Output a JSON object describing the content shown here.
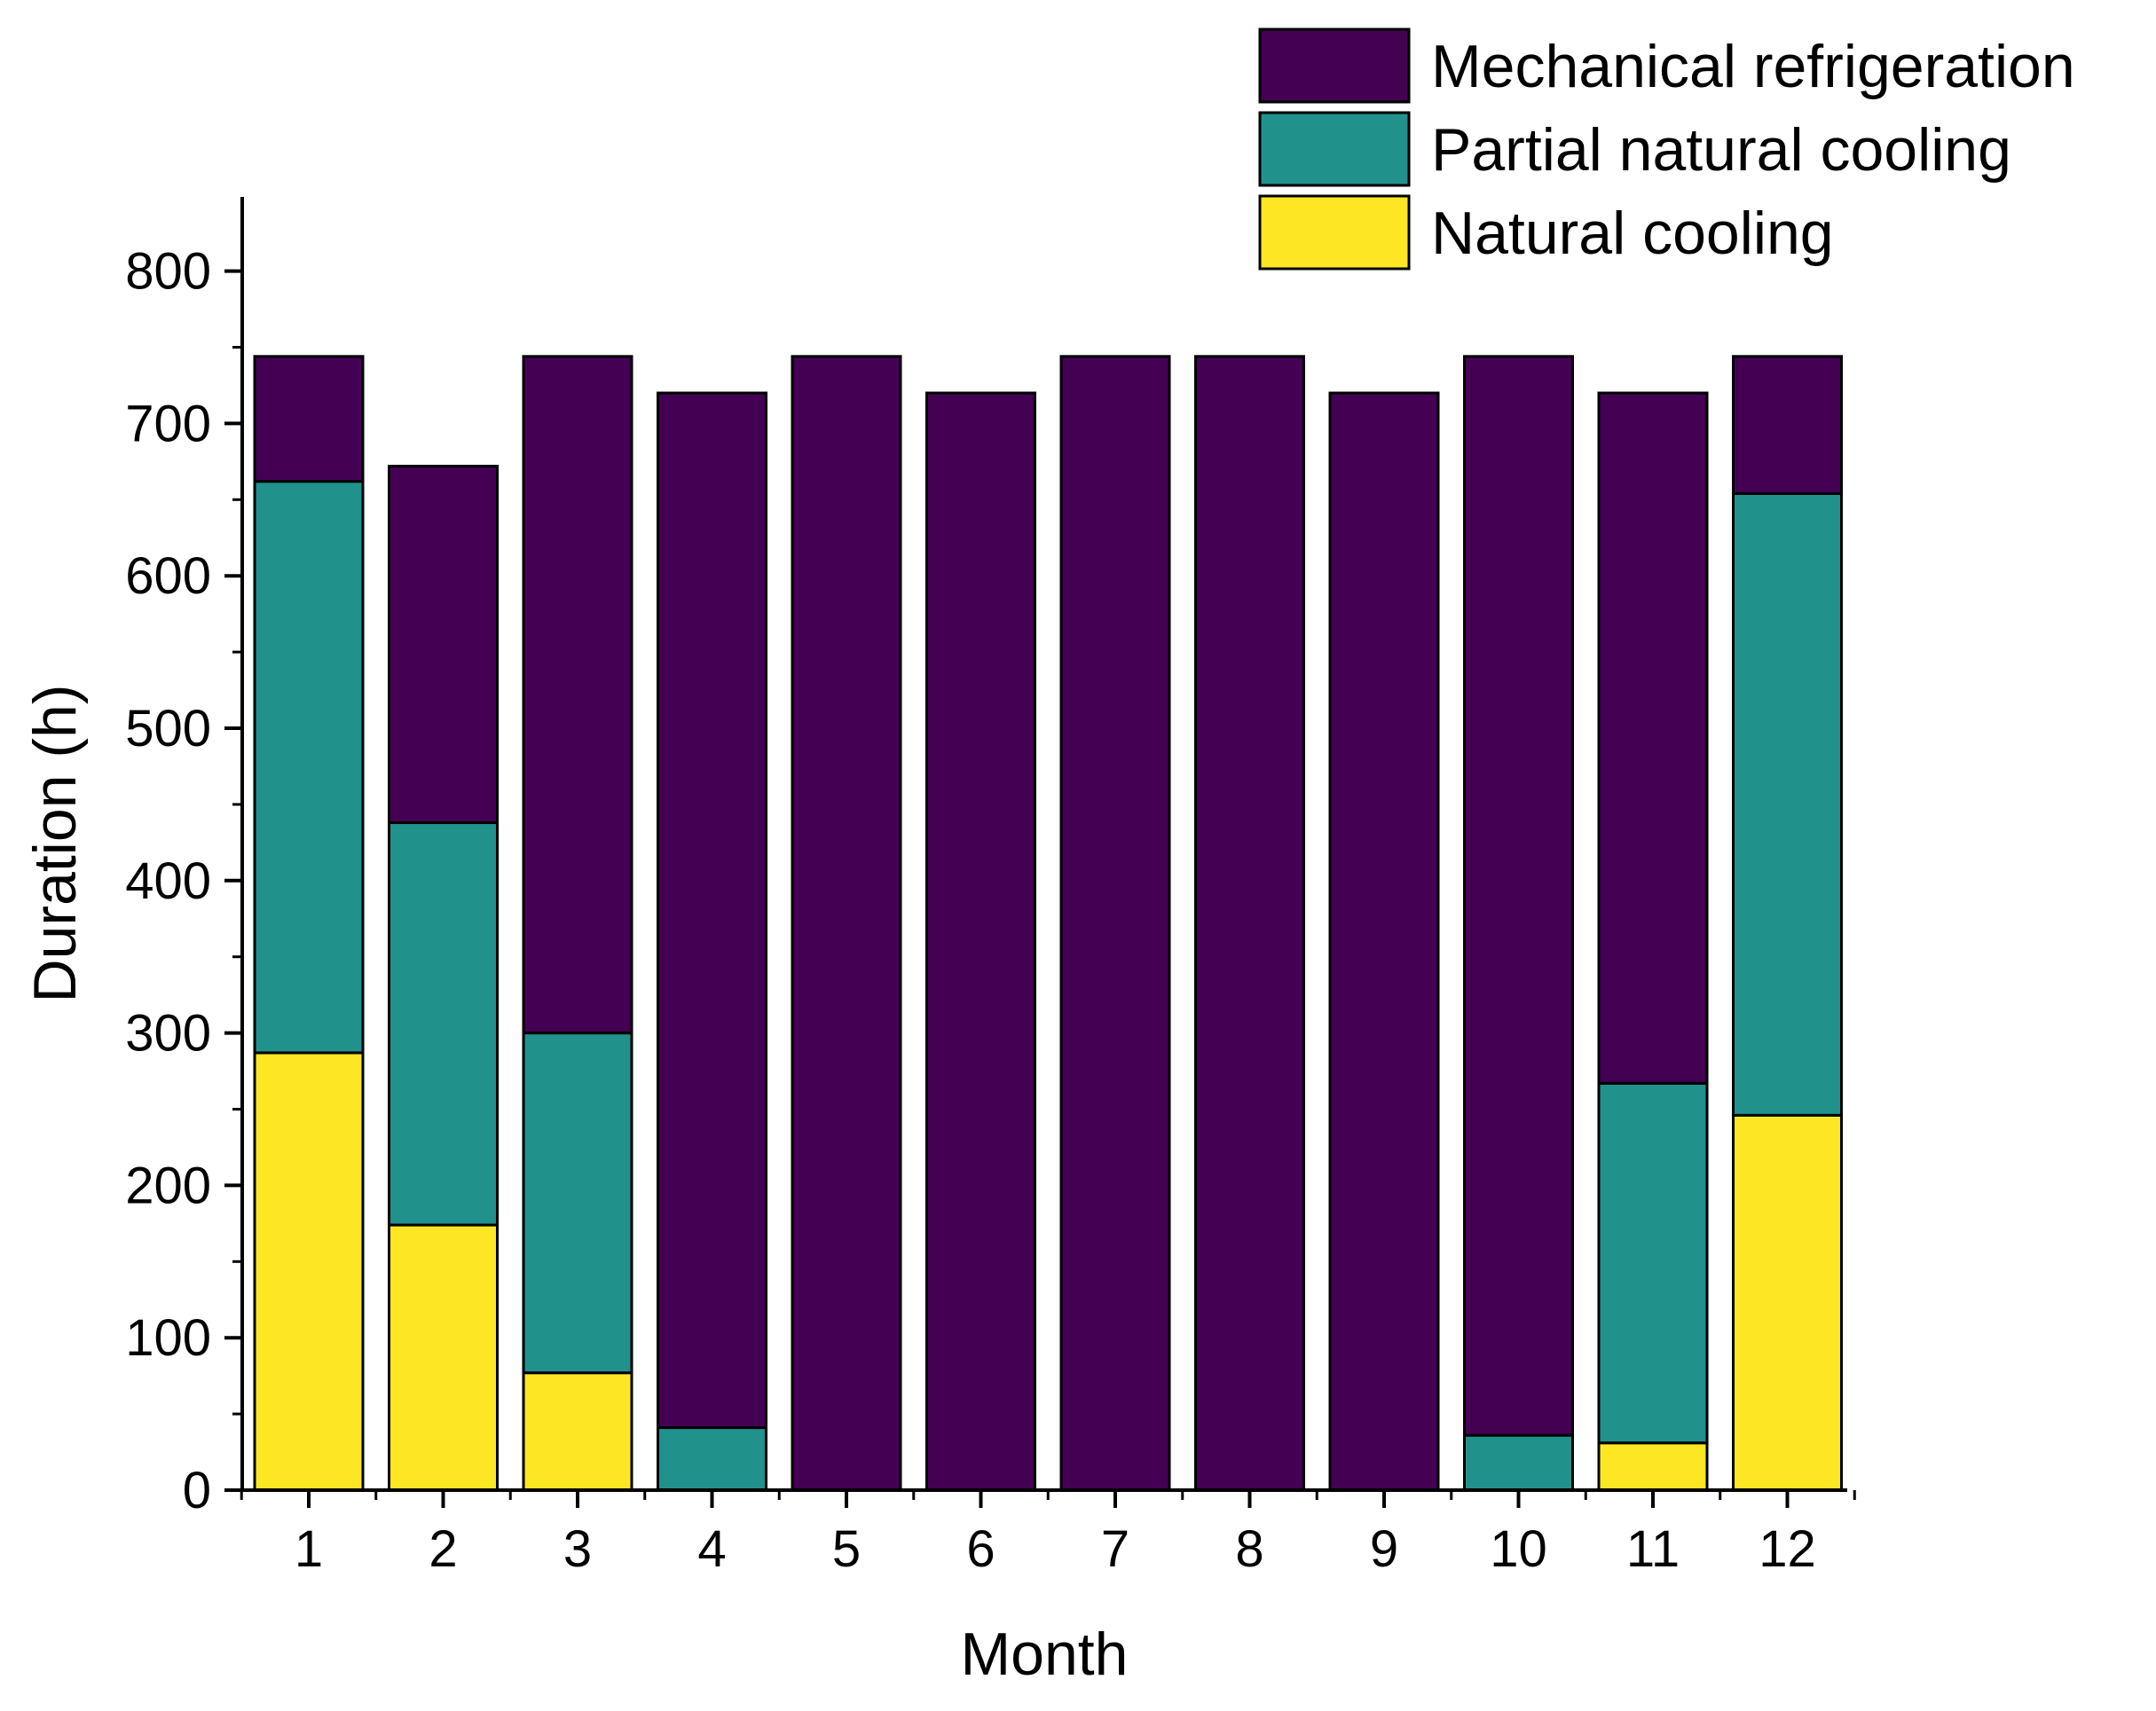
{
  "chart_data": {
    "type": "bar",
    "stacked": true,
    "xlabel": "Month",
    "ylabel": "Duration (h)",
    "ylim": [
      0,
      850
    ],
    "yticks": [
      0,
      100,
      200,
      300,
      400,
      500,
      600,
      700,
      800
    ],
    "categories": [
      "1",
      "2",
      "3",
      "4",
      "5",
      "6",
      "7",
      "8",
      "9",
      "10",
      "11",
      "12"
    ],
    "series": [
      {
        "name": "Natural cooling",
        "color": "#fde725",
        "values": [
          287,
          174,
          77,
          0,
          0,
          0,
          0,
          0,
          0,
          0,
          31,
          246
        ]
      },
      {
        "name": "Partial natural cooling",
        "color": "#21918c",
        "values": [
          375,
          264,
          223,
          41,
          0,
          0,
          0,
          0,
          0,
          36,
          236,
          408
        ]
      },
      {
        "name": "Mechanical refrigeration",
        "color": "#440154",
        "values": [
          82,
          234,
          444,
          679,
          744,
          720,
          744,
          744,
          720,
          708,
          453,
          90
        ]
      }
    ],
    "legend_order": [
      "Mechanical refrigeration",
      "Partial natural cooling",
      "Natural cooling"
    ],
    "legend_position": "top-right",
    "grid": false
  }
}
